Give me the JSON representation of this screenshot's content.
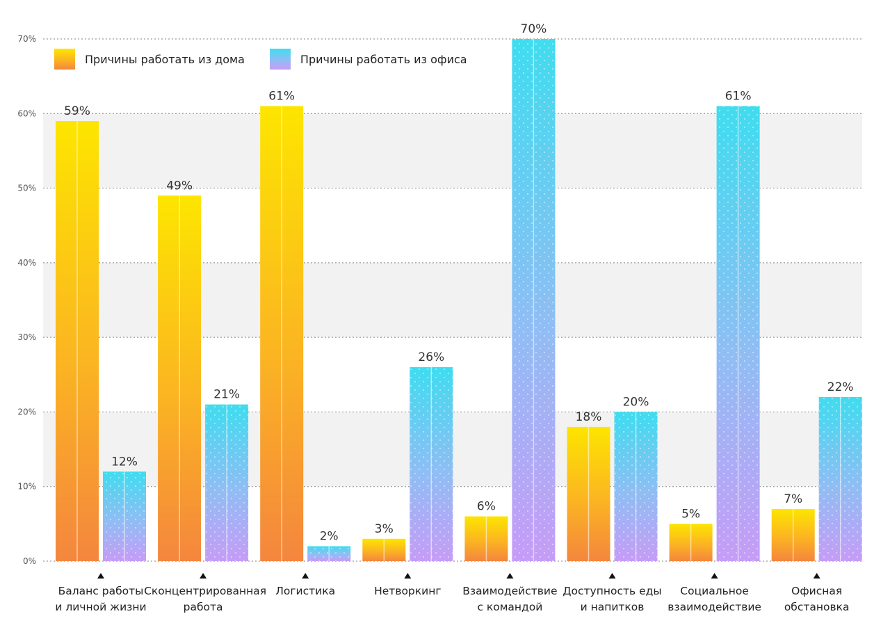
{
  "legend": {
    "home_label": "Причины работать из дома",
    "office_label": "Причины работать из офиса"
  },
  "colors": {
    "home_top": "#fde500",
    "home_mid": "#fbb422",
    "home_bottom": "#f4863e",
    "office_top": "#3fdcef",
    "office_mid": "#90bdf4",
    "office_bottom": "#c69cf7",
    "grid_band": "#f2f2f2"
  },
  "chart_data": {
    "type": "bar",
    "title": "",
    "xlabel": "",
    "ylabel": "",
    "ylim": [
      0,
      70
    ],
    "yticks": [
      "0%",
      "10%",
      "20%",
      "30%",
      "40%",
      "50%",
      "60%",
      "70%"
    ],
    "grid": true,
    "legend_position": "top-left",
    "categories": [
      "Баланс работы\nи личной жизни",
      "Сконцентрированная\nработа",
      "Логистика",
      "Нетворкинг",
      "Взаимодействие\nс командой",
      "Доступность еды\nи напитков",
      "Социальное\nвзаимодействие",
      "Офисная\nобстановка"
    ],
    "series": [
      {
        "name": "Причины работать из дома",
        "values": [
          59,
          49,
          61,
          3,
          6,
          18,
          5,
          7
        ]
      },
      {
        "name": "Причины работать из офиса",
        "values": [
          12,
          21,
          2,
          26,
          70,
          20,
          61,
          22
        ]
      }
    ]
  }
}
